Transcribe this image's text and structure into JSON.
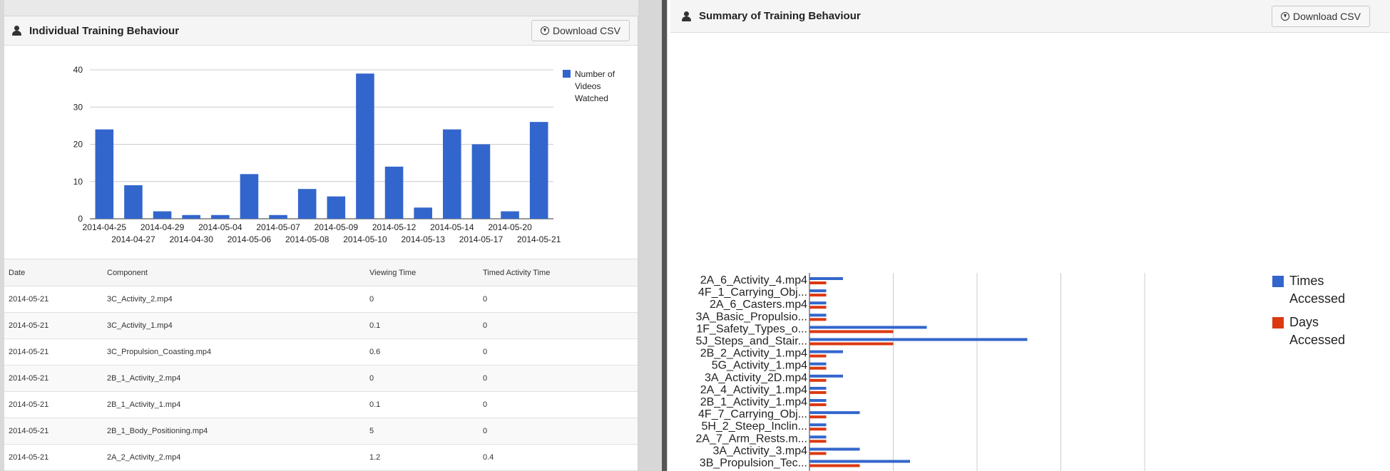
{
  "left_panel": {
    "title": "Individual Training Behaviour",
    "download_label": "Download CSV",
    "table": {
      "headers": [
        "Date",
        "Component",
        "Viewing Time",
        "Timed Activity Time"
      ],
      "rows": [
        [
          "2014-05-21",
          "3C_Activity_2.mp4",
          "0",
          "0"
        ],
        [
          "2014-05-21",
          "3C_Activity_1.mp4",
          "0.1",
          "0"
        ],
        [
          "2014-05-21",
          "3C_Propulsion_Coasting.mp4",
          "0.6",
          "0"
        ],
        [
          "2014-05-21",
          "2B_1_Activity_2.mp4",
          "0",
          "0"
        ],
        [
          "2014-05-21",
          "2B_1_Activity_1.mp4",
          "0.1",
          "0"
        ],
        [
          "2014-05-21",
          "2B_1_Body_Positioning.mp4",
          "5",
          "0"
        ],
        [
          "2014-05-21",
          "2A_2_Activity_2.mp4",
          "1.2",
          "0.4"
        ]
      ]
    }
  },
  "right_panel": {
    "title": "Summary of Training Behaviour",
    "download_label": "Download CSV"
  },
  "chart_data": [
    {
      "type": "bar",
      "categories": [
        "2014-04-25",
        "2014-04-27",
        "2014-04-29",
        "2014-04-30",
        "2014-05-04",
        "2014-05-06",
        "2014-05-07",
        "2014-05-08",
        "2014-05-09",
        "2014-05-10",
        "2014-05-12",
        "2014-05-13",
        "2014-05-14",
        "2014-05-17",
        "2014-05-20",
        "2014-05-21"
      ],
      "series": [
        {
          "name": "Number of Videos Watched",
          "values": [
            24,
            9,
            2,
            1,
            1,
            12,
            1,
            8,
            6,
            39,
            14,
            3,
            24,
            20,
            2,
            26
          ],
          "color": "#3366cc"
        }
      ],
      "yticks": [
        0,
        10,
        20,
        30,
        40
      ],
      "ylim": [
        0,
        40
      ],
      "grid": true,
      "legend_position": "right"
    },
    {
      "type": "bar",
      "orientation": "horizontal",
      "categories": [
        "2A_6_Activity_4.mp4",
        "4F_1_Carrying_Obj...",
        "2A_6_Casters.mp4",
        "3A_Basic_Propulsio...",
        "1F_Safety_Types_o...",
        "5J_Steps_and_Stair...",
        "2B_2_Activity_1.mp4",
        "5G_Activity_1.mp4",
        "3A_Activity_2D.mp4",
        "2A_4_Activity_1.mp4",
        "2B_1_Activity_1.mp4",
        "4F_7_Carrying_Obj...",
        "5H_2_Steep_Inclin...",
        "2A_7_Arm_Rests.m...",
        "3A_Activity_3.mp4",
        "3B_Propulsion_Tec..."
      ],
      "series": [
        {
          "name": "Times Accessed",
          "values": [
            2,
            1,
            1,
            1,
            7,
            13,
            2,
            1,
            2,
            1,
            1,
            3,
            1,
            1,
            3,
            6
          ],
          "color": "#3366cc"
        },
        {
          "name": "Days Accessed",
          "values": [
            1,
            1,
            1,
            1,
            5,
            5,
            1,
            1,
            1,
            1,
            1,
            1,
            1,
            1,
            1,
            3
          ],
          "color": "#dc3912"
        }
      ],
      "xlim": [
        0,
        20
      ],
      "grid": true,
      "legend_position": "right"
    }
  ]
}
